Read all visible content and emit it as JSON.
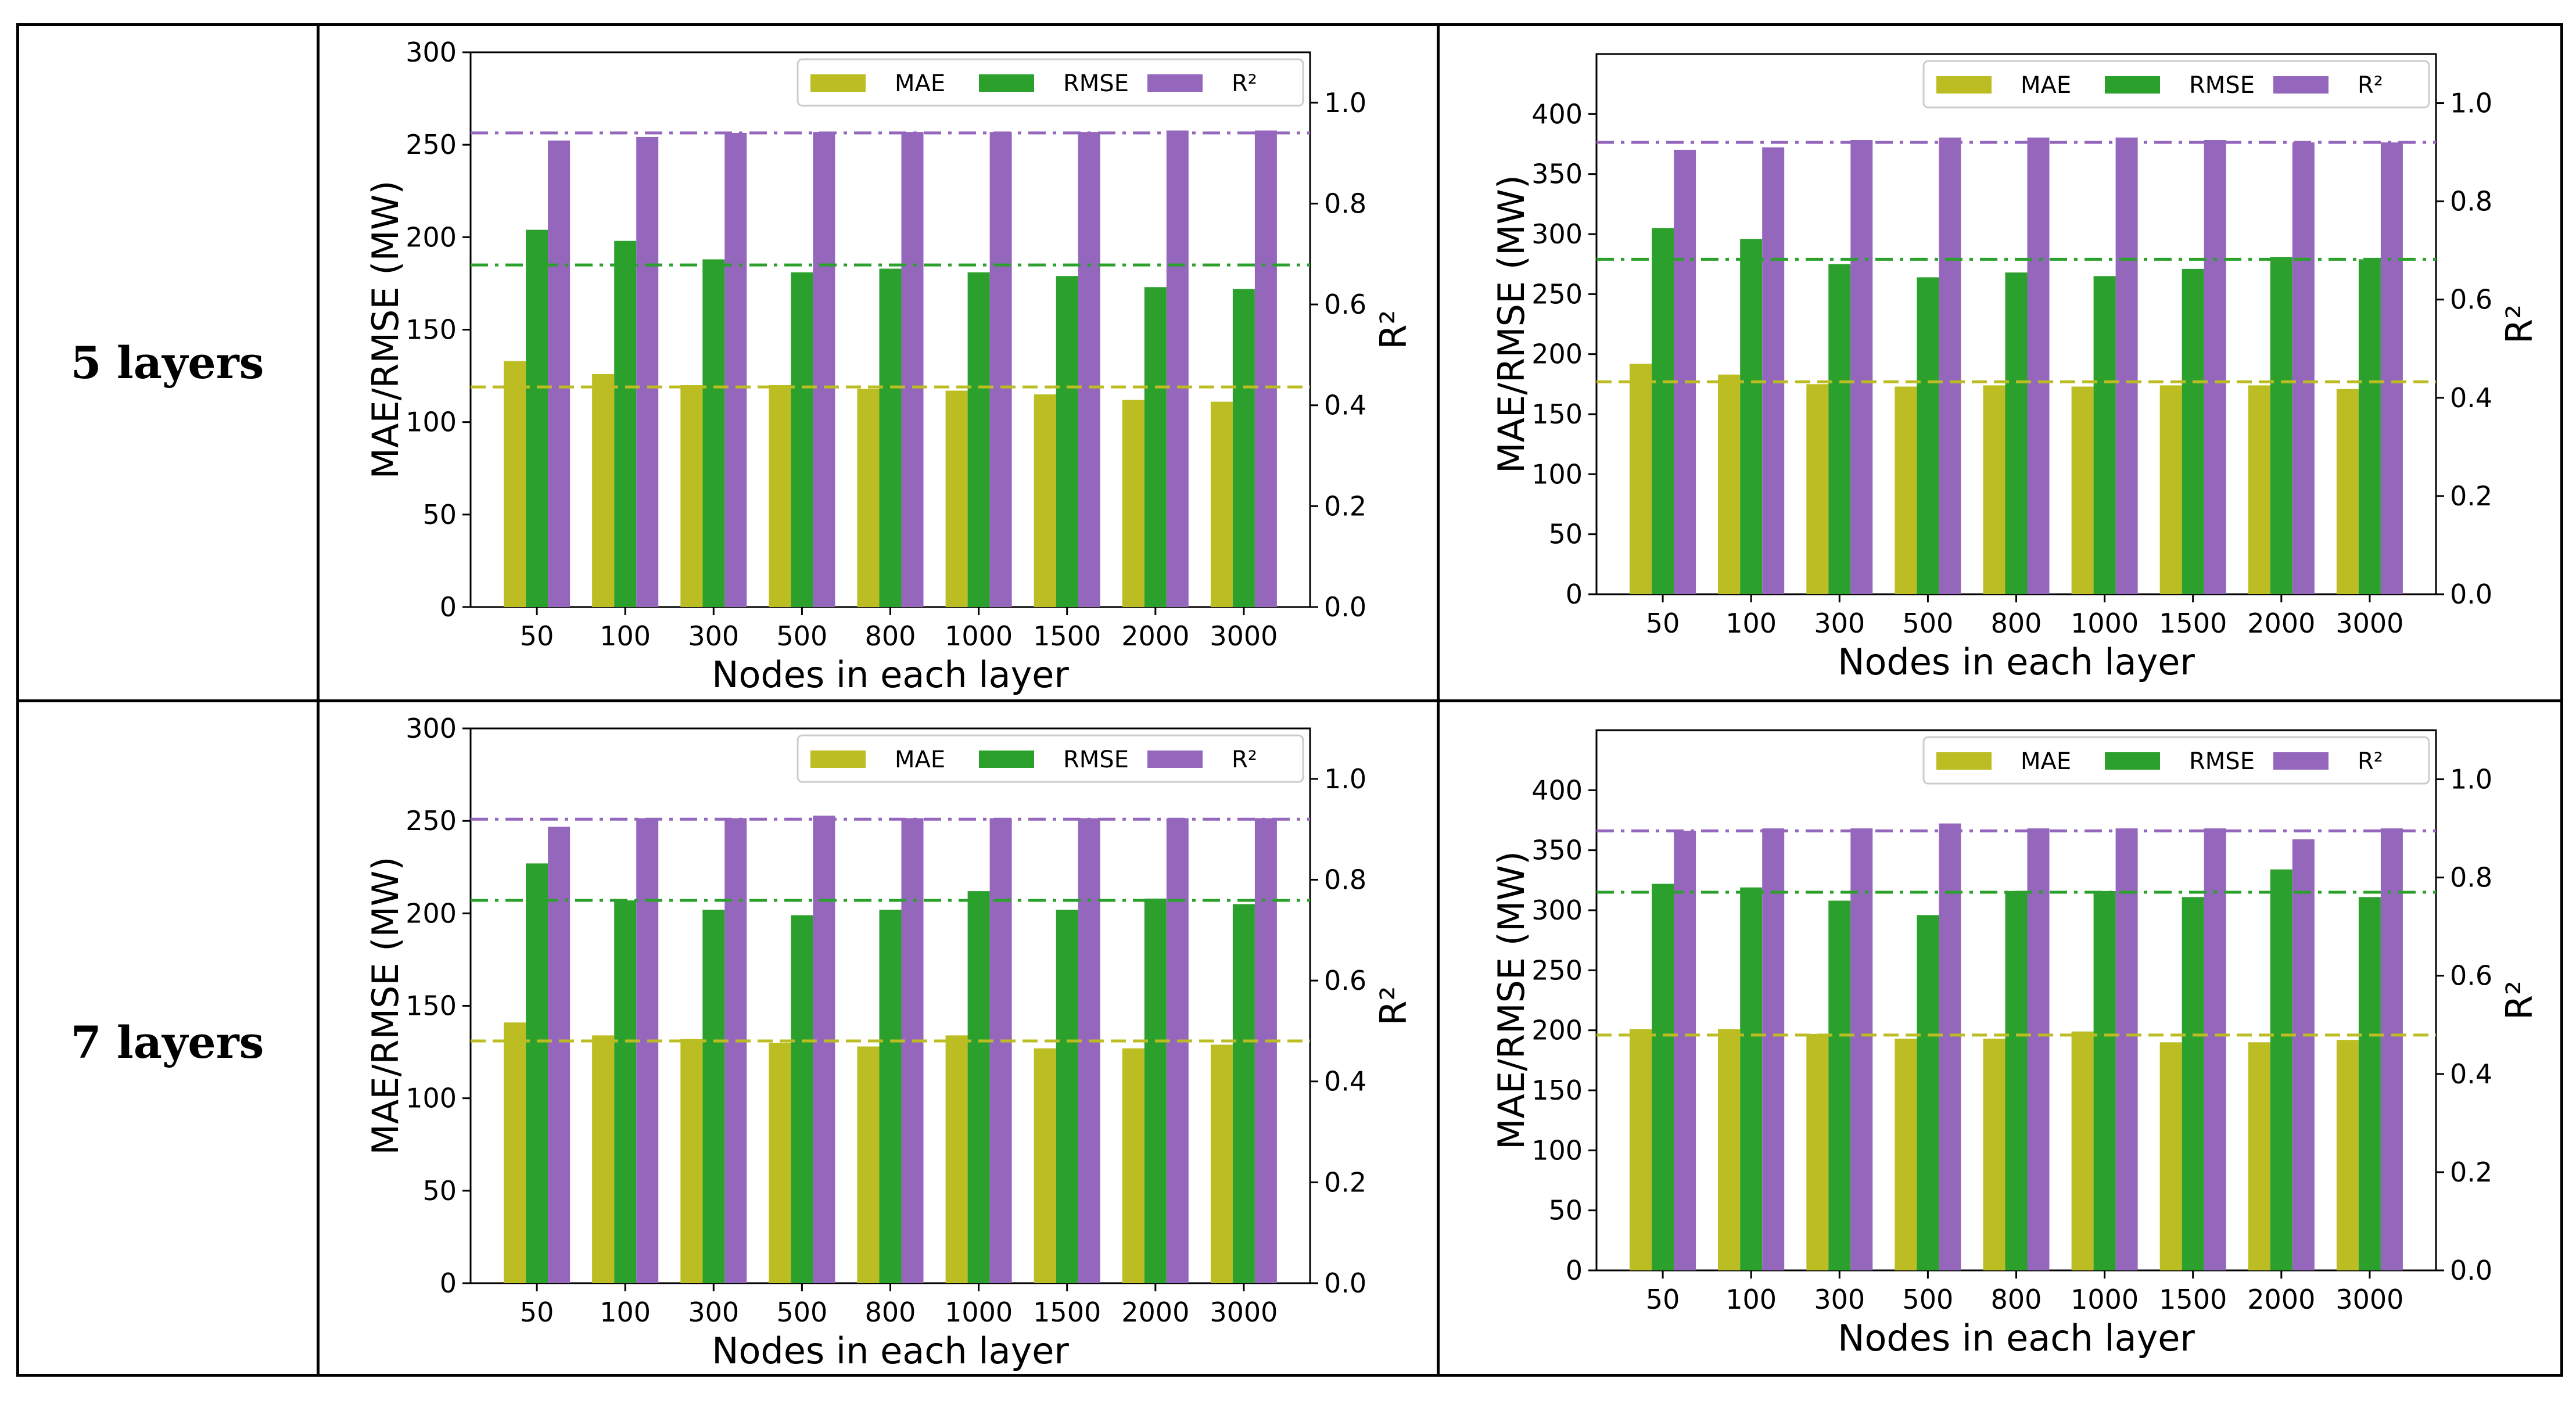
{
  "row_labels": [
    "5 layers",
    "7 layers"
  ],
  "colors": {
    "mae": "#BCBD22",
    "rmse": "#2CA02C",
    "r2": "#9467BD"
  },
  "chart_data": [
    {
      "type": "bar",
      "panel": "5 layers - left",
      "categories": [
        "50",
        "100",
        "300",
        "500",
        "800",
        "1000",
        "1500",
        "2000",
        "3000"
      ],
      "series": [
        {
          "name": "MAE",
          "axis": "left",
          "values": [
            133,
            126,
            120,
            120,
            118,
            117,
            115,
            112,
            111
          ]
        },
        {
          "name": "RMSE",
          "axis": "left",
          "values": [
            204,
            198,
            188,
            181,
            183,
            181,
            179,
            173,
            172
          ]
        },
        {
          "name": "R²",
          "axis": "right",
          "values": [
            0.925,
            0.932,
            0.94,
            0.942,
            0.942,
            0.942,
            0.942,
            0.945,
            0.945
          ]
        }
      ],
      "reference_lines": [
        {
          "series": "MAE",
          "axis": "left",
          "value": 119
        },
        {
          "series": "RMSE",
          "axis": "left",
          "value": 185
        },
        {
          "series": "R²",
          "axis": "right",
          "value": 0.94
        }
      ],
      "xlabel": "Nodes in each layer",
      "ylabel": "MAE/RMSE (MW)",
      "y2label": "R²",
      "ylim": [
        0,
        300
      ],
      "y2lim": [
        0,
        1.1
      ],
      "yticks": [
        0,
        50,
        100,
        150,
        200,
        250,
        300
      ],
      "y2ticks": [
        "0.0",
        "0.2",
        "0.4",
        "0.6",
        "0.8",
        "1.0"
      ],
      "legend": [
        "MAE",
        "RMSE",
        "R²"
      ],
      "legend_position": "top-right"
    },
    {
      "type": "bar",
      "panel": "5 layers - right",
      "categories": [
        "50",
        "100",
        "300",
        "500",
        "800",
        "1000",
        "1500",
        "2000",
        "3000"
      ],
      "series": [
        {
          "name": "MAE",
          "axis": "left",
          "values": [
            192,
            183,
            175,
            173,
            174,
            173,
            174,
            174,
            171
          ]
        },
        {
          "name": "RMSE",
          "axis": "left",
          "values": [
            305,
            296,
            275,
            264,
            268,
            265,
            271,
            281,
            279
          ]
        },
        {
          "name": "R²",
          "axis": "right",
          "values": [
            0.905,
            0.91,
            0.925,
            0.93,
            0.93,
            0.93,
            0.925,
            0.92,
            0.92
          ]
        }
      ],
      "reference_lines": [
        {
          "series": "MAE",
          "axis": "left",
          "value": 177
        },
        {
          "series": "RMSE",
          "axis": "left",
          "value": 279
        },
        {
          "series": "R²",
          "axis": "right",
          "value": 0.92
        }
      ],
      "xlabel": "Nodes in each layer",
      "ylabel": "MAE/RMSE (MW)",
      "y2label": "R²",
      "ylim": [
        0,
        450
      ],
      "y2lim": [
        0,
        1.1
      ],
      "yticks": [
        0,
        50,
        100,
        150,
        200,
        250,
        300,
        350,
        400
      ],
      "y2ticks": [
        "0.0",
        "0.2",
        "0.4",
        "0.6",
        "0.8",
        "1.0"
      ],
      "legend": [
        "MAE",
        "RMSE",
        "R²"
      ],
      "legend_position": "top-right"
    },
    {
      "type": "bar",
      "panel": "7 layers - left",
      "categories": [
        "50",
        "100",
        "300",
        "500",
        "800",
        "1000",
        "1500",
        "2000",
        "3000"
      ],
      "series": [
        {
          "name": "MAE",
          "axis": "left",
          "values": [
            141,
            134,
            132,
            130,
            128,
            134,
            127,
            127,
            129
          ]
        },
        {
          "name": "RMSE",
          "axis": "left",
          "values": [
            227,
            207,
            202,
            199,
            202,
            212,
            202,
            208,
            205
          ]
        },
        {
          "name": "R²",
          "axis": "right",
          "values": [
            0.905,
            0.922,
            0.922,
            0.927,
            0.922,
            0.922,
            0.922,
            0.922,
            0.922
          ]
        }
      ],
      "reference_lines": [
        {
          "series": "MAE",
          "axis": "left",
          "value": 131
        },
        {
          "series": "RMSE",
          "axis": "left",
          "value": 207
        },
        {
          "series": "R²",
          "axis": "right",
          "value": 0.92
        }
      ],
      "xlabel": "Nodes in each layer",
      "ylabel": "MAE/RMSE (MW)",
      "y2label": "R²",
      "ylim": [
        0,
        300
      ],
      "y2lim": [
        0,
        1.1
      ],
      "yticks": [
        0,
        50,
        100,
        150,
        200,
        250,
        300
      ],
      "y2ticks": [
        "0.0",
        "0.2",
        "0.4",
        "0.6",
        "0.8",
        "1.0"
      ],
      "legend": [
        "MAE",
        "RMSE",
        "R²"
      ],
      "legend_position": "top-right"
    },
    {
      "type": "bar",
      "panel": "7 layers - right",
      "categories": [
        "50",
        "100",
        "300",
        "500",
        "800",
        "1000",
        "1500",
        "2000",
        "3000"
      ],
      "series": [
        {
          "name": "MAE",
          "axis": "left",
          "values": [
            201,
            201,
            197,
            193,
            193,
            199,
            190,
            190,
            192
          ]
        },
        {
          "name": "RMSE",
          "axis": "left",
          "values": [
            322,
            319,
            308,
            296,
            316,
            316,
            311,
            334,
            311
          ]
        },
        {
          "name": "R²",
          "axis": "right",
          "values": [
            0.895,
            0.9,
            0.9,
            0.91,
            0.9,
            0.9,
            0.9,
            0.878,
            0.9
          ]
        }
      ],
      "reference_lines": [
        {
          "series": "MAE",
          "axis": "left",
          "value": 196
        },
        {
          "series": "RMSE",
          "axis": "left",
          "value": 315
        },
        {
          "series": "R²",
          "axis": "right",
          "value": 0.895
        }
      ],
      "xlabel": "Nodes in each layer",
      "ylabel": "MAE/RMSE (MW)",
      "y2label": "R²",
      "ylim": [
        0,
        450
      ],
      "y2lim": [
        0,
        1.1
      ],
      "yticks": [
        0,
        50,
        100,
        150,
        200,
        250,
        300,
        350,
        400
      ],
      "y2ticks": [
        "0.0",
        "0.2",
        "0.4",
        "0.6",
        "0.8",
        "1.0"
      ],
      "legend": [
        "MAE",
        "RMSE",
        "R²"
      ],
      "legend_position": "top-right"
    }
  ]
}
